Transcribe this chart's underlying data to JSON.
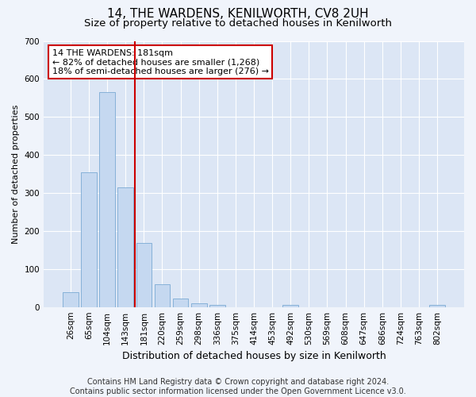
{
  "title": "14, THE WARDENS, KENILWORTH, CV8 2UH",
  "subtitle": "Size of property relative to detached houses in Kenilworth",
  "xlabel": "Distribution of detached houses by size in Kenilworth",
  "ylabel": "Number of detached properties",
  "bar_labels": [
    "26sqm",
    "65sqm",
    "104sqm",
    "143sqm",
    "181sqm",
    "220sqm",
    "259sqm",
    "298sqm",
    "336sqm",
    "375sqm",
    "414sqm",
    "453sqm",
    "492sqm",
    "530sqm",
    "569sqm",
    "608sqm",
    "647sqm",
    "686sqm",
    "724sqm",
    "763sqm",
    "802sqm"
  ],
  "bar_values": [
    40,
    355,
    565,
    315,
    168,
    60,
    22,
    10,
    5,
    0,
    0,
    0,
    5,
    0,
    0,
    0,
    0,
    0,
    0,
    0,
    5
  ],
  "bar_color": "#c5d8f0",
  "bar_edgecolor": "#7aaad4",
  "vline_x": 3.5,
  "vline_color": "#cc0000",
  "annotation_text": "14 THE WARDENS: 181sqm\n← 82% of detached houses are smaller (1,268)\n18% of semi-detached houses are larger (276) →",
  "annotation_box_color": "#ffffff",
  "annotation_box_edgecolor": "#cc0000",
  "ylim": [
    0,
    700
  ],
  "yticks": [
    0,
    100,
    200,
    300,
    400,
    500,
    600,
    700
  ],
  "footer_text": "Contains HM Land Registry data © Crown copyright and database right 2024.\nContains public sector information licensed under the Open Government Licence v3.0.",
  "background_color": "#f0f4fb",
  "plot_bg_color": "#dce6f5",
  "title_fontsize": 11,
  "subtitle_fontsize": 9.5,
  "xlabel_fontsize": 9,
  "ylabel_fontsize": 8,
  "footer_fontsize": 7,
  "tick_fontsize": 7.5
}
